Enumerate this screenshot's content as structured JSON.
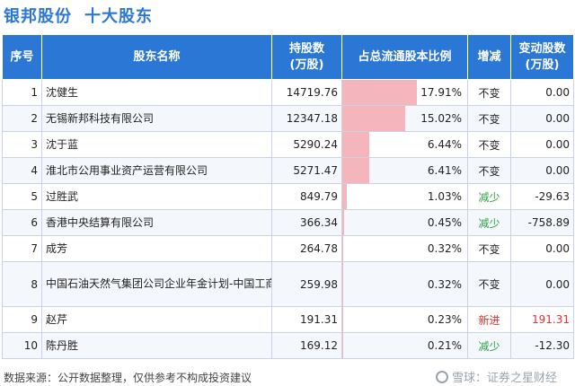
{
  "title": {
    "company": "银邦股份",
    "subtitle": "十大股东"
  },
  "headers": {
    "index": "序号",
    "name": "股东名称",
    "shares": "持股数\n(万股)",
    "ratio": "占总流通股本比例",
    "change": "增减",
    "delta": "变动股数\n(万股)"
  },
  "rows": [
    {
      "index": "1",
      "name": "沈健生",
      "shares": "14719.76",
      "ratio_label": "17.91%",
      "ratio": 17.91,
      "change": "不变",
      "delta": "0.00",
      "status": "same"
    },
    {
      "index": "2",
      "name": "无锡新邦科技有限公司",
      "shares": "12347.18",
      "ratio_label": "15.02%",
      "ratio": 15.02,
      "change": "不变",
      "delta": "0.00",
      "status": "same"
    },
    {
      "index": "3",
      "name": "沈于蓝",
      "shares": "5290.24",
      "ratio_label": "6.44%",
      "ratio": 6.44,
      "change": "不变",
      "delta": "0.00",
      "status": "same"
    },
    {
      "index": "4",
      "name": "淮北市公用事业资产运营有限公司",
      "shares": "5271.47",
      "ratio_label": "6.41%",
      "ratio": 6.41,
      "change": "不变",
      "delta": "0.00",
      "status": "same"
    },
    {
      "index": "5",
      "name": "过胜武",
      "shares": "849.79",
      "ratio_label": "1.03%",
      "ratio": 1.03,
      "change": "减少",
      "delta": "-29.63",
      "status": "down"
    },
    {
      "index": "6",
      "name": "香港中央结算有限公司",
      "shares": "366.34",
      "ratio_label": "0.45%",
      "ratio": 0.45,
      "change": "减少",
      "delta": "-758.89",
      "status": "down"
    },
    {
      "index": "7",
      "name": "成芳",
      "shares": "264.78",
      "ratio_label": "0.32%",
      "ratio": 0.32,
      "change": "不变",
      "delta": "0.00",
      "status": "same"
    },
    {
      "index": "8",
      "name": "中国石油天然气集团公司企业年金计划-中国工商银行股份有限公司",
      "shares": "259.98",
      "ratio_label": "0.32%",
      "ratio": 0.32,
      "change": "不变",
      "delta": "0.00",
      "status": "same",
      "tall": true
    },
    {
      "index": "9",
      "name": "赵芹",
      "shares": "191.31",
      "ratio_label": "0.23%",
      "ratio": 0.23,
      "change": "新进",
      "delta": "191.31",
      "status": "new"
    },
    {
      "index": "10",
      "name": "陈丹胜",
      "shares": "169.12",
      "ratio_label": "0.21%",
      "ratio": 0.21,
      "change": "减少",
      "delta": "-12.30",
      "status": "down"
    }
  ],
  "ratio_scale_max": 17.91,
  "colors": {
    "header_bg": "#2b77d6",
    "bar": "#f4b6bc",
    "down": "#2f9e44",
    "new": "#e03131"
  },
  "footer": {
    "source": "数据来源：公开数据整理，仅供参考不构成投资建议",
    "watermark": "雪球：证券之星财经"
  }
}
